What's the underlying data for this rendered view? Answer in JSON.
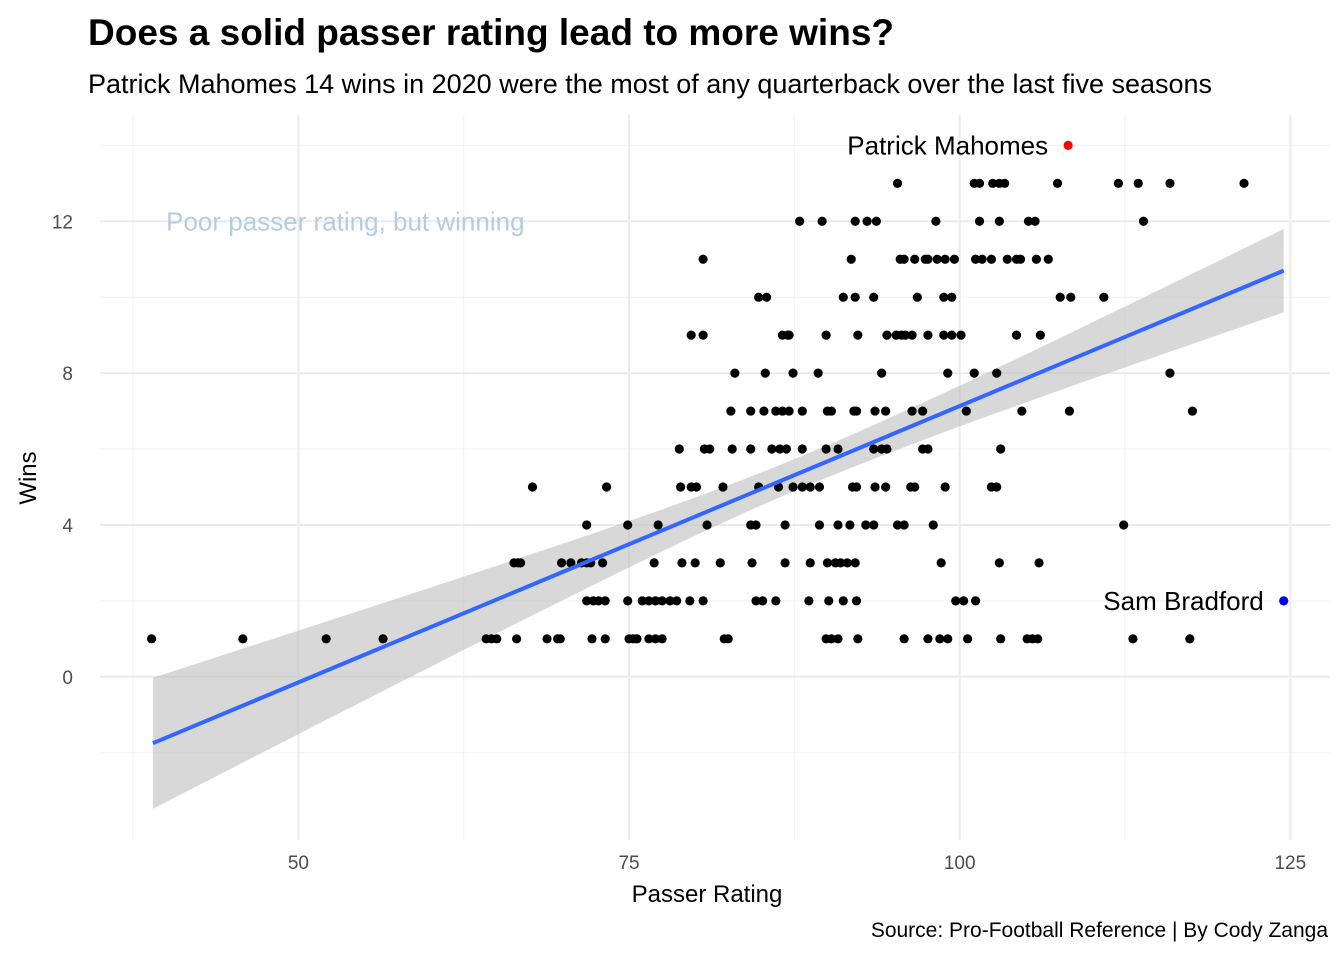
{
  "title": "Does a solid passer rating lead to more wins?",
  "subtitle": "Patrick Mahomes 14 wins in 2020 were the most of any quarterback over the last five seasons",
  "caption": "Source: Pro-Football Reference | By Cody Zanga",
  "chart_data": {
    "type": "scatter",
    "xlabel": "Passer Rating",
    "ylabel": "Wins",
    "xlim": [
      35,
      128
    ],
    "ylim": [
      -4.3,
      14.8
    ],
    "x_ticks": [
      50,
      75,
      100,
      125
    ],
    "y_ticks": [
      0,
      4,
      8,
      12
    ],
    "grid": true,
    "point_color": "#000000",
    "trend": {
      "method": "linear",
      "color": "#3366FF",
      "band_color": "#BEBEBE",
      "x": [
        39,
        124.5
      ],
      "y": [
        -1.75,
        10.7
      ],
      "band_lower": [
        -3.45,
        9.6
      ],
      "band_upper": [
        0.0,
        11.8
      ]
    },
    "annotations": [
      {
        "text": "Poor passer rating, but winning",
        "x": 40,
        "y": 12,
        "color": "#B3CDE3"
      }
    ],
    "highlights": [
      {
        "name": "Patrick Mahomes",
        "x": 108.2,
        "y": 14,
        "color": "#FF0000"
      },
      {
        "name": "Sam Bradford",
        "x": 124.5,
        "y": 2,
        "color": "#0000FF"
      }
    ],
    "points": [
      [
        38.9,
        1
      ],
      [
        45.8,
        1
      ],
      [
        52.1,
        1
      ],
      [
        56.4,
        1
      ],
      [
        64.2,
        1
      ],
      [
        64.6,
        1
      ],
      [
        65.0,
        1
      ],
      [
        66.5,
        1
      ],
      [
        68.8,
        1
      ],
      [
        69.6,
        1
      ],
      [
        69.8,
        1
      ],
      [
        72.2,
        1
      ],
      [
        73.2,
        1
      ],
      [
        75.0,
        1
      ],
      [
        75.3,
        1
      ],
      [
        75.6,
        1
      ],
      [
        76.5,
        1
      ],
      [
        77.0,
        1
      ],
      [
        77.5,
        1
      ],
      [
        82.2,
        1
      ],
      [
        82.5,
        1
      ],
      [
        89.9,
        1
      ],
      [
        90.3,
        1
      ],
      [
        90.8,
        1
      ],
      [
        92.3,
        1
      ],
      [
        95.8,
        1
      ],
      [
        97.6,
        1
      ],
      [
        98.5,
        1
      ],
      [
        99.1,
        1
      ],
      [
        100.6,
        1
      ],
      [
        103.1,
        1
      ],
      [
        105.1,
        1
      ],
      [
        105.5,
        1
      ],
      [
        105.9,
        1
      ],
      [
        113.1,
        1
      ],
      [
        117.4,
        1
      ],
      [
        71.8,
        2
      ],
      [
        72.3,
        2
      ],
      [
        72.7,
        2
      ],
      [
        73.2,
        2
      ],
      [
        74.9,
        2
      ],
      [
        76.0,
        2
      ],
      [
        76.5,
        2
      ],
      [
        77.0,
        2
      ],
      [
        77.5,
        2
      ],
      [
        78.1,
        2
      ],
      [
        78.6,
        2
      ],
      [
        79.6,
        2
      ],
      [
        80.6,
        2
      ],
      [
        84.6,
        2
      ],
      [
        85.1,
        2
      ],
      [
        86.1,
        2
      ],
      [
        88.6,
        2
      ],
      [
        90.1,
        2
      ],
      [
        91.2,
        2
      ],
      [
        92.2,
        2
      ],
      [
        99.7,
        2
      ],
      [
        100.3,
        2
      ],
      [
        101.2,
        2
      ],
      [
        66.3,
        3
      ],
      [
        66.6,
        3
      ],
      [
        66.8,
        3
      ],
      [
        69.9,
        3
      ],
      [
        70.6,
        3
      ],
      [
        71.4,
        3
      ],
      [
        71.8,
        3
      ],
      [
        72.1,
        3
      ],
      [
        73.0,
        3
      ],
      [
        76.9,
        3
      ],
      [
        79.0,
        3
      ],
      [
        80.0,
        3
      ],
      [
        81.9,
        3
      ],
      [
        84.3,
        3
      ],
      [
        86.8,
        3
      ],
      [
        88.7,
        3
      ],
      [
        90.0,
        3
      ],
      [
        90.6,
        3
      ],
      [
        91.0,
        3
      ],
      [
        91.5,
        3
      ],
      [
        92.1,
        3
      ],
      [
        98.6,
        3
      ],
      [
        103.0,
        3
      ],
      [
        106.0,
        3
      ],
      [
        71.8,
        4
      ],
      [
        74.9,
        4
      ],
      [
        77.2,
        4
      ],
      [
        80.9,
        4
      ],
      [
        84.2,
        4
      ],
      [
        84.6,
        4
      ],
      [
        86.8,
        4
      ],
      [
        89.4,
        4
      ],
      [
        90.8,
        4
      ],
      [
        91.7,
        4
      ],
      [
        92.9,
        4
      ],
      [
        93.5,
        4
      ],
      [
        95.3,
        4
      ],
      [
        95.8,
        4
      ],
      [
        98.0,
        4
      ],
      [
        112.4,
        4
      ],
      [
        67.7,
        5
      ],
      [
        73.3,
        5
      ],
      [
        78.9,
        5
      ],
      [
        79.7,
        5
      ],
      [
        80.1,
        5
      ],
      [
        82.1,
        5
      ],
      [
        84.8,
        5
      ],
      [
        86.3,
        5
      ],
      [
        87.4,
        5
      ],
      [
        88.1,
        5
      ],
      [
        88.7,
        5
      ],
      [
        89.4,
        5
      ],
      [
        91.9,
        5
      ],
      [
        92.2,
        5
      ],
      [
        93.6,
        5
      ],
      [
        94.4,
        5
      ],
      [
        96.3,
        5
      ],
      [
        96.6,
        5
      ],
      [
        98.9,
        5
      ],
      [
        102.4,
        5
      ],
      [
        102.8,
        5
      ],
      [
        78.8,
        6
      ],
      [
        80.7,
        6
      ],
      [
        81.1,
        6
      ],
      [
        82.8,
        6
      ],
      [
        84.2,
        6
      ],
      [
        85.8,
        6
      ],
      [
        86.4,
        6
      ],
      [
        86.9,
        6
      ],
      [
        88.1,
        6
      ],
      [
        89.9,
        6
      ],
      [
        90.8,
        6
      ],
      [
        93.5,
        6
      ],
      [
        94.1,
        6
      ],
      [
        94.5,
        6
      ],
      [
        97.2,
        6
      ],
      [
        97.6,
        6
      ],
      [
        103.1,
        6
      ],
      [
        82.7,
        7
      ],
      [
        84.2,
        7
      ],
      [
        85.2,
        7
      ],
      [
        86.1,
        7
      ],
      [
        86.6,
        7
      ],
      [
        87.1,
        7
      ],
      [
        88.1,
        7
      ],
      [
        90.0,
        7
      ],
      [
        90.3,
        7
      ],
      [
        92.0,
        7
      ],
      [
        92.2,
        7
      ],
      [
        93.6,
        7
      ],
      [
        94.4,
        7
      ],
      [
        96.4,
        7
      ],
      [
        97.2,
        7
      ],
      [
        100.5,
        7
      ],
      [
        104.7,
        7
      ],
      [
        108.3,
        7
      ],
      [
        117.6,
        7
      ],
      [
        83.0,
        8
      ],
      [
        85.3,
        8
      ],
      [
        87.4,
        8
      ],
      [
        89.3,
        8
      ],
      [
        94.1,
        8
      ],
      [
        99.1,
        8
      ],
      [
        101.1,
        8
      ],
      [
        102.8,
        8
      ],
      [
        115.9,
        8
      ],
      [
        79.7,
        9
      ],
      [
        80.6,
        9
      ],
      [
        86.6,
        9
      ],
      [
        87.0,
        9
      ],
      [
        87.1,
        9
      ],
      [
        89.9,
        9
      ],
      [
        92.3,
        9
      ],
      [
        94.5,
        9
      ],
      [
        95.2,
        9
      ],
      [
        95.6,
        9
      ],
      [
        95.9,
        9
      ],
      [
        96.4,
        9
      ],
      [
        97.6,
        9
      ],
      [
        98.8,
        9
      ],
      [
        99.4,
        9
      ],
      [
        100.1,
        9
      ],
      [
        104.3,
        9
      ],
      [
        106.1,
        9
      ],
      [
        84.8,
        10
      ],
      [
        85.4,
        10
      ],
      [
        91.2,
        10
      ],
      [
        92.1,
        10
      ],
      [
        93.5,
        10
      ],
      [
        96.8,
        10
      ],
      [
        98.8,
        10
      ],
      [
        99.4,
        10
      ],
      [
        107.6,
        10
      ],
      [
        108.4,
        10
      ],
      [
        110.9,
        10
      ],
      [
        80.6,
        11
      ],
      [
        91.8,
        11
      ],
      [
        95.5,
        11
      ],
      [
        95.8,
        11
      ],
      [
        96.6,
        11
      ],
      [
        97.4,
        11
      ],
      [
        97.6,
        11
      ],
      [
        98.3,
        11
      ],
      [
        98.9,
        11
      ],
      [
        99.6,
        11
      ],
      [
        101.2,
        11
      ],
      [
        101.7,
        11
      ],
      [
        102.4,
        11
      ],
      [
        103.6,
        11
      ],
      [
        104.3,
        11
      ],
      [
        104.6,
        11
      ],
      [
        105.8,
        11
      ],
      [
        106.7,
        11
      ],
      [
        87.9,
        12
      ],
      [
        89.6,
        12
      ],
      [
        92.1,
        12
      ],
      [
        93.0,
        12
      ],
      [
        93.7,
        12
      ],
      [
        98.2,
        12
      ],
      [
        101.5,
        12
      ],
      [
        103.0,
        12
      ],
      [
        105.2,
        12
      ],
      [
        105.7,
        12
      ],
      [
        113.9,
        12
      ],
      [
        95.3,
        13
      ],
      [
        101.1,
        13
      ],
      [
        101.5,
        13
      ],
      [
        102.5,
        13
      ],
      [
        103.0,
        13
      ],
      [
        103.4,
        13
      ],
      [
        107.4,
        13
      ],
      [
        112.0,
        13
      ],
      [
        113.5,
        13
      ],
      [
        115.9,
        13
      ],
      [
        121.5,
        13
      ]
    ]
  }
}
